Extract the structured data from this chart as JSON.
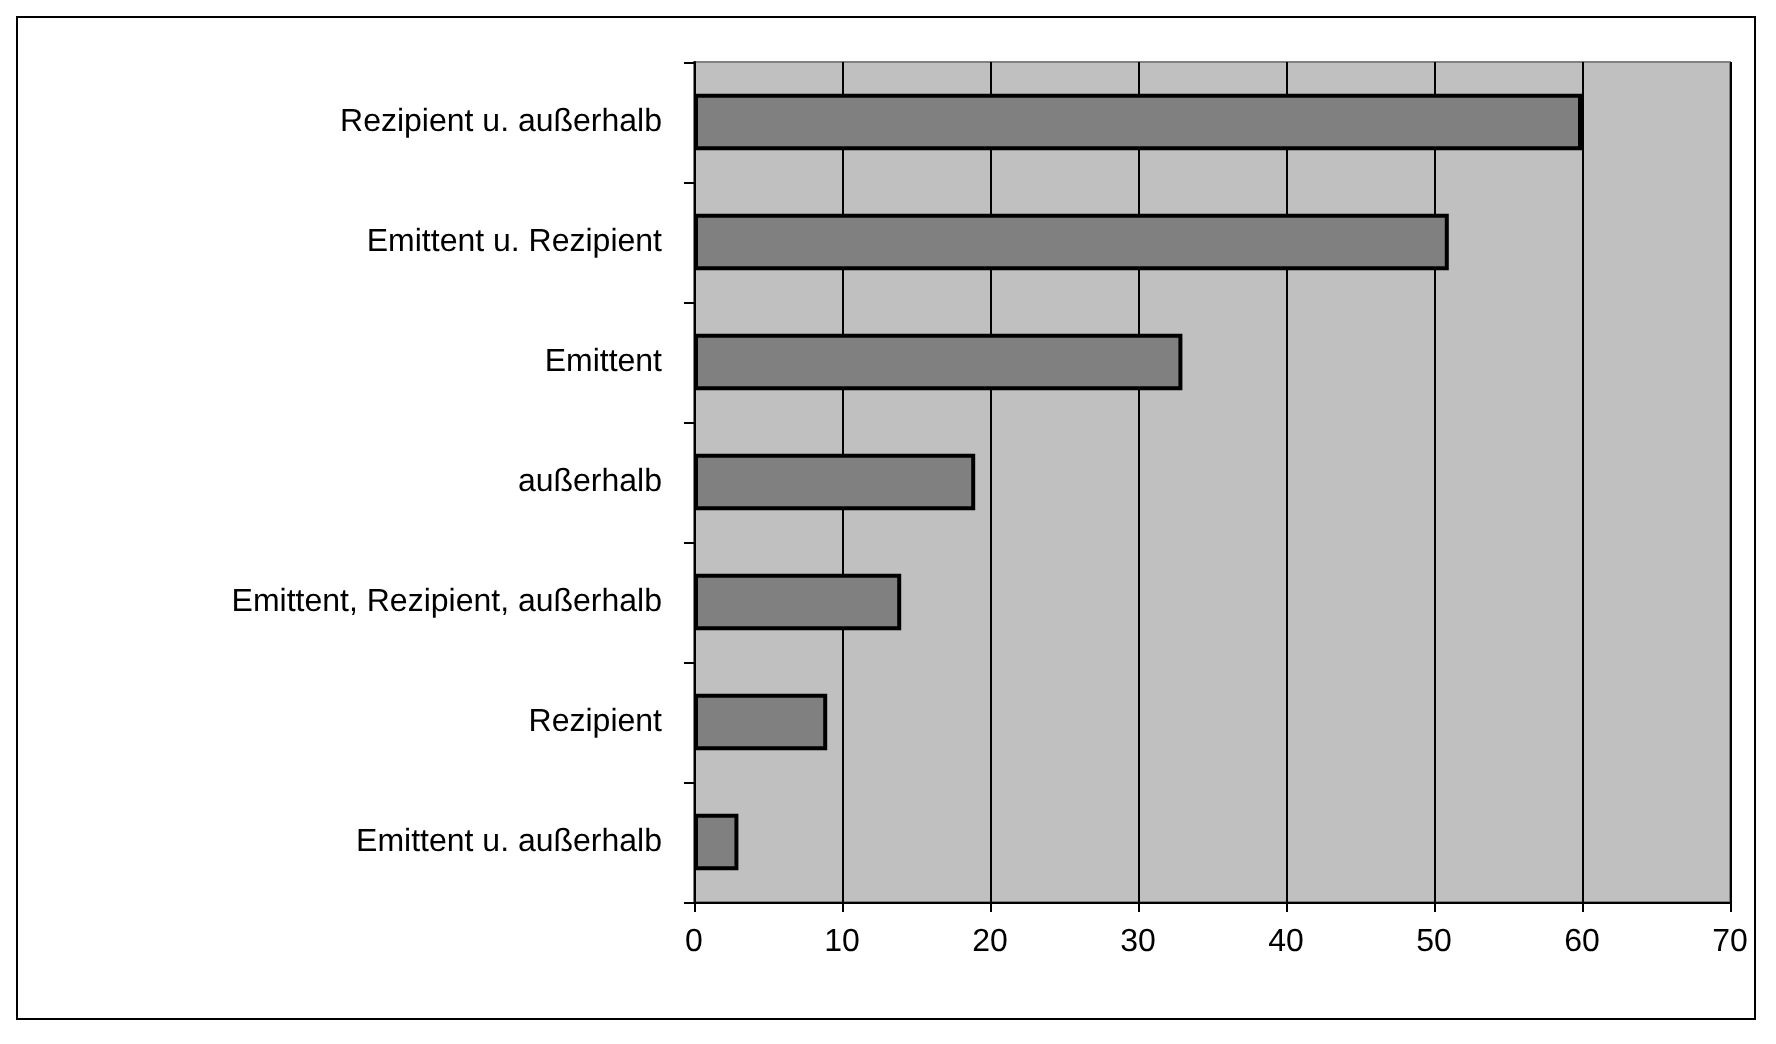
{
  "chart_data": {
    "type": "bar",
    "orientation": "horizontal",
    "categories": [
      "Rezipient u. außerhalb",
      "Emittent u. Rezipient",
      "Emittent",
      "außerhalb",
      "Emittent, Rezipient, außerhalb",
      "Rezipient",
      "Emittent u. außerhalb"
    ],
    "values": [
      60,
      51,
      33,
      19,
      14,
      9,
      3
    ],
    "color": "#808080",
    "xlim": [
      0,
      70
    ],
    "xticks": [
      0,
      10,
      20,
      30,
      40,
      50,
      60,
      70
    ],
    "grid": "x"
  }
}
